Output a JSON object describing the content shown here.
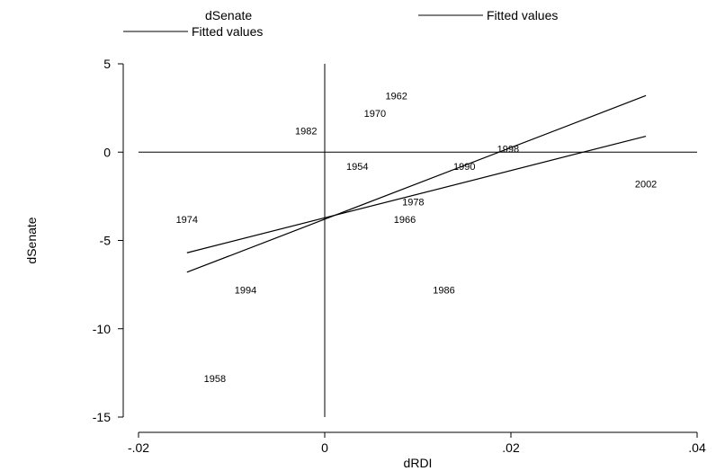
{
  "chart_data": {
    "type": "scatter",
    "xlabel": "dRDI",
    "ylabel": "dSenate",
    "xlim": [
      -0.02,
      0.04
    ],
    "ylim": [
      -15,
      5
    ],
    "x_ticks": [
      -0.02,
      0,
      0.02,
      0.04
    ],
    "x_tick_labels": [
      "-.02",
      "0",
      ".02",
      ".04"
    ],
    "y_ticks": [
      -15,
      -10,
      -5,
      0,
      5
    ],
    "y_tick_labels": [
      "-15",
      "-10",
      "-5",
      "0",
      "5"
    ],
    "reference_lines": {
      "x": 0,
      "y": 0
    },
    "points": [
      {
        "label": "1954",
        "x": 0.0035,
        "y": -0.8
      },
      {
        "label": "1958",
        "x": -0.0118,
        "y": -12.8
      },
      {
        "label": "1962",
        "x": 0.0077,
        "y": 3.2
      },
      {
        "label": "1966",
        "x": 0.0086,
        "y": -3.8
      },
      {
        "label": "1970",
        "x": 0.0054,
        "y": 2.2
      },
      {
        "label": "1974",
        "x": -0.0148,
        "y": -3.8
      },
      {
        "label": "1978",
        "x": 0.0095,
        "y": -2.8
      },
      {
        "label": "1982",
        "x": -0.002,
        "y": 1.2
      },
      {
        "label": "1986",
        "x": 0.0128,
        "y": -7.8
      },
      {
        "label": "1990",
        "x": 0.015,
        "y": -0.8
      },
      {
        "label": "1994",
        "x": -0.0085,
        "y": -7.8
      },
      {
        "label": "1998",
        "x": 0.0197,
        "y": 0.2
      },
      {
        "label": "2002",
        "x": 0.0345,
        "y": -1.8
      }
    ],
    "series": [
      {
        "name": "Fitted values",
        "x": [
          -0.0148,
          0.0345
        ],
        "y": [
          -6.8,
          3.2
        ]
      },
      {
        "name": "Fitted values",
        "x": [
          -0.0148,
          0.0345
        ],
        "y": [
          -5.7,
          0.9
        ]
      }
    ],
    "legend": {
      "position": "top",
      "entries": [
        {
          "label": "dSenate",
          "marker": "none"
        },
        {
          "label": "Fitted values",
          "marker": "line"
        },
        {
          "label": "Fitted values",
          "marker": "line"
        }
      ]
    }
  }
}
